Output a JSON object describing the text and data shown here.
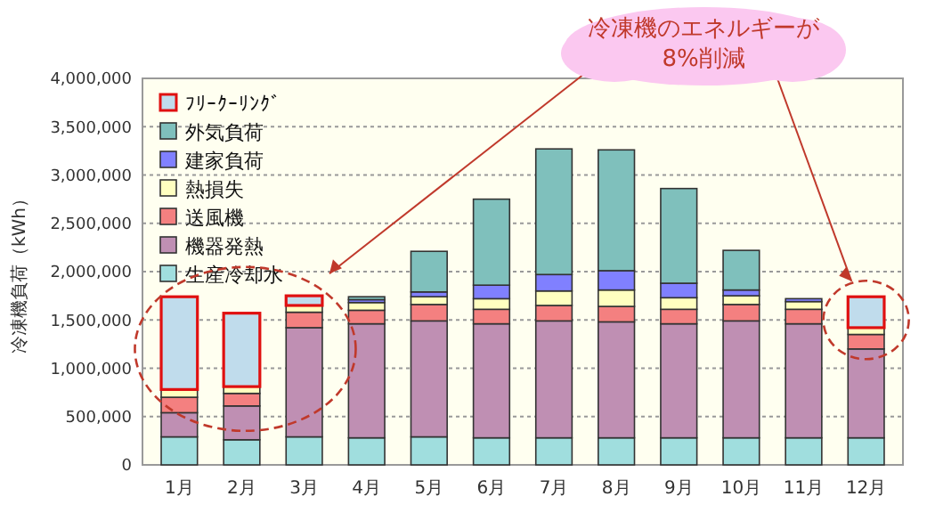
{
  "chart_data": {
    "type": "bar",
    "stacked": true,
    "ylabel": "冷凍機負荷（kWh）",
    "categories": [
      "1月",
      "2月",
      "3月",
      "4月",
      "5月",
      "6月",
      "7月",
      "8月",
      "9月",
      "10月",
      "11月",
      "12月"
    ],
    "series": [
      {
        "name": "生産冷却水",
        "color": "#a0dede",
        "values": [
          290000,
          260000,
          290000,
          280000,
          290000,
          280000,
          280000,
          280000,
          280000,
          280000,
          280000,
          280000
        ]
      },
      {
        "name": "機器発熱",
        "color": "#bf8fb3",
        "values": [
          250000,
          350000,
          1130000,
          1180000,
          1200000,
          1180000,
          1210000,
          1200000,
          1180000,
          1210000,
          1180000,
          920000
        ]
      },
      {
        "name": "送風機",
        "color": "#f48080",
        "values": [
          160000,
          130000,
          160000,
          140000,
          170000,
          150000,
          160000,
          160000,
          150000,
          170000,
          150000,
          150000
        ]
      },
      {
        "name": "熱損失",
        "color": "#ffffc0",
        "values": [
          80000,
          70000,
          70000,
          80000,
          80000,
          110000,
          150000,
          170000,
          120000,
          90000,
          80000,
          70000
        ]
      },
      {
        "name": "建家負荷",
        "color": "#8080ff",
        "values": [
          null,
          null,
          null,
          30000,
          50000,
          140000,
          170000,
          200000,
          150000,
          60000,
          30000,
          null
        ]
      },
      {
        "name": "外気負荷",
        "color": "#7fc0bc",
        "values": [
          null,
          null,
          null,
          30000,
          420000,
          890000,
          1300000,
          1250000,
          980000,
          410000,
          null,
          null
        ]
      },
      {
        "name": "ﾌﾘｰｸｰﾘﾝｸﾞ",
        "color": "#c0dcec",
        "values": [
          960000,
          760000,
          100000,
          null,
          null,
          null,
          null,
          null,
          null,
          null,
          null,
          320000
        ]
      }
    ],
    "ylim": [
      0,
      4000000
    ],
    "yticks": [
      {
        "value": 0,
        "label": "0"
      },
      {
        "value": 500000,
        "label": "500,000"
      },
      {
        "value": 1000000,
        "label": "1,000,000"
      },
      {
        "value": 1500000,
        "label": "1,500,000"
      },
      {
        "value": 2000000,
        "label": "2,000,000"
      },
      {
        "value": 2500000,
        "label": "2,500,000"
      },
      {
        "value": 3000000,
        "label": "3,000,000"
      },
      {
        "value": 3500000,
        "label": "3,500,000"
      },
      {
        "value": 4000000,
        "label": "4,000,000"
      }
    ],
    "grid": "y",
    "legend": "top left",
    "annotations": [
      "冷凍機のエネルギーが\n8%削減"
    ]
  }
}
